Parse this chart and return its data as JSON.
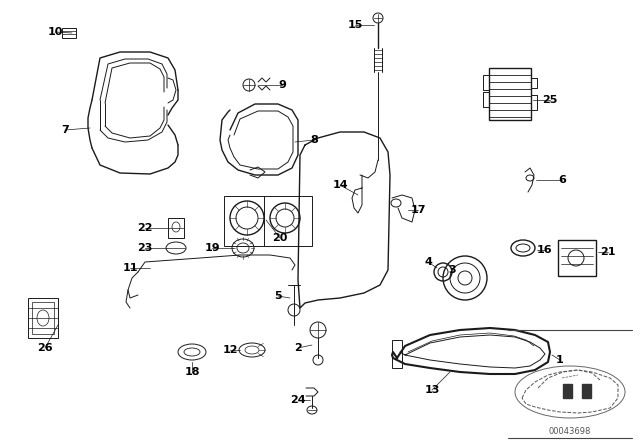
{
  "bg_color": "#ffffff",
  "line_color": "#1a1a1a",
  "label_color": "#000000",
  "watermark": "00043698",
  "figsize": [
    6.4,
    4.48
  ],
  "dpi": 100
}
